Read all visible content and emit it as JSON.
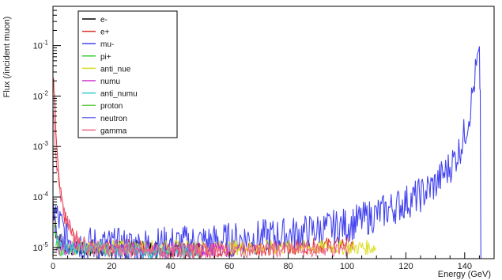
{
  "chart_data": {
    "type": "line",
    "title": "",
    "xlabel": "Energy (GeV)",
    "ylabel": "Flux (/incident muon)",
    "xlim": [
      0,
      150
    ],
    "ylim": [
      6e-06,
      0.6
    ],
    "log_y": true,
    "grid": false,
    "legend_position": "top-left",
    "x_ticks": [
      0,
      20,
      40,
      60,
      80,
      100,
      120,
      140
    ],
    "x_tick_labels": [
      "0",
      "20",
      "40",
      "60",
      "80",
      "100",
      "120",
      "140"
    ],
    "y_ticks": [
      1e-05,
      0.0001,
      0.001,
      0.01,
      0.1
    ],
    "y_tick_labels": [
      "10^-5",
      "10^-4",
      "10^-3",
      "10^-2",
      "10^-1"
    ],
    "series": [
      {
        "name": "e-",
        "color": "#000000",
        "points": [
          [
            0.5,
            6e-05
          ],
          [
            1,
            2e-05
          ],
          [
            3,
            1.2e-05
          ],
          [
            5,
            1e-05
          ],
          [
            10,
            9e-06
          ],
          [
            30,
            1e-05
          ],
          [
            50,
            9e-06
          ]
        ]
      },
      {
        "name": "e+",
        "color": "#e03030",
        "points": [
          [
            0.2,
            0.02
          ],
          [
            0.5,
            0.008
          ],
          [
            1,
            0.002
          ],
          [
            1.5,
            0.0006
          ],
          [
            2,
            0.0002
          ],
          [
            3,
            8e-05
          ],
          [
            4,
            4e-05
          ],
          [
            6,
            2e-05
          ],
          [
            8,
            1.5e-05
          ],
          [
            10,
            1.2e-05
          ],
          [
            15,
            1e-05
          ],
          [
            20,
            1.2e-05
          ],
          [
            30,
            1e-05
          ],
          [
            40,
            9e-06
          ],
          [
            60,
            9e-06
          ],
          [
            80,
            1e-05
          ],
          [
            100,
            1.2e-05
          ],
          [
            102,
            9e-06
          ]
        ]
      },
      {
        "name": "mu-",
        "color": "#4444ee",
        "points": [
          [
            0,
            6e-05
          ],
          [
            5,
            1.5e-05
          ],
          [
            10,
            1.2e-05
          ],
          [
            20,
            1.1e-05
          ],
          [
            30,
            1.1e-05
          ],
          [
            40,
            1.2e-05
          ],
          [
            50,
            1.3e-05
          ],
          [
            60,
            1.4e-05
          ],
          [
            70,
            1.6e-05
          ],
          [
            80,
            1.8e-05
          ],
          [
            90,
            2.2e-05
          ],
          [
            100,
            2.8e-05
          ],
          [
            105,
            3.5e-05
          ],
          [
            110,
            4.5e-05
          ],
          [
            115,
            6e-05
          ],
          [
            120,
            8e-05
          ],
          [
            125,
            0.00011
          ],
          [
            130,
            0.00018
          ],
          [
            135,
            0.0004
          ],
          [
            138,
            0.0008
          ],
          [
            140,
            0.0018
          ],
          [
            142,
            0.006
          ],
          [
            143,
            0.015
          ],
          [
            144,
            0.035
          ],
          [
            144.6,
            0.055
          ],
          [
            145,
            0.045
          ],
          [
            145.3,
            0.01
          ],
          [
            145.5,
            6e-06
          ]
        ]
      },
      {
        "name": "pi+",
        "color": "#33cc33",
        "points": [
          [
            0.5,
            2e-05
          ],
          [
            2,
            1e-05
          ]
        ]
      },
      {
        "name": "anti_nue",
        "color": "#dddd22",
        "points": [
          [
            1,
            1e-05
          ],
          [
            78,
            1e-05
          ],
          [
            110,
            1e-05
          ]
        ]
      },
      {
        "name": "numu",
        "color": "#cc33cc",
        "points": [
          [
            1,
            1e-05
          ],
          [
            30,
            9e-06
          ],
          [
            60,
            9e-06
          ]
        ]
      },
      {
        "name": "anti_numu",
        "color": "#33cccc",
        "points": [
          [
            1,
            1e-05
          ],
          [
            50,
            8e-06
          ]
        ]
      },
      {
        "name": "proton",
        "color": "#66cc44",
        "points": [
          [
            1,
            1.2e-05
          ],
          [
            3,
            9e-06
          ]
        ]
      },
      {
        "name": "neutron",
        "color": "#7777ee",
        "points": [
          [
            0.5,
            3e-05
          ],
          [
            2,
            1.5e-05
          ],
          [
            5,
            1e-05
          ]
        ]
      },
      {
        "name": "gamma",
        "color": "#ee6688",
        "points": [
          [
            0.2,
            0.005
          ],
          [
            0.5,
            0.002
          ],
          [
            1,
            0.0006
          ],
          [
            2,
            0.0002
          ],
          [
            3,
            8e-05
          ],
          [
            5,
            3e-05
          ],
          [
            8,
            1.5e-05
          ],
          [
            12,
            1e-05
          ],
          [
            20,
            9e-06
          ],
          [
            40,
            8e-06
          ],
          [
            61,
            9e-06
          ],
          [
            100,
            9e-06
          ]
        ]
      }
    ]
  }
}
